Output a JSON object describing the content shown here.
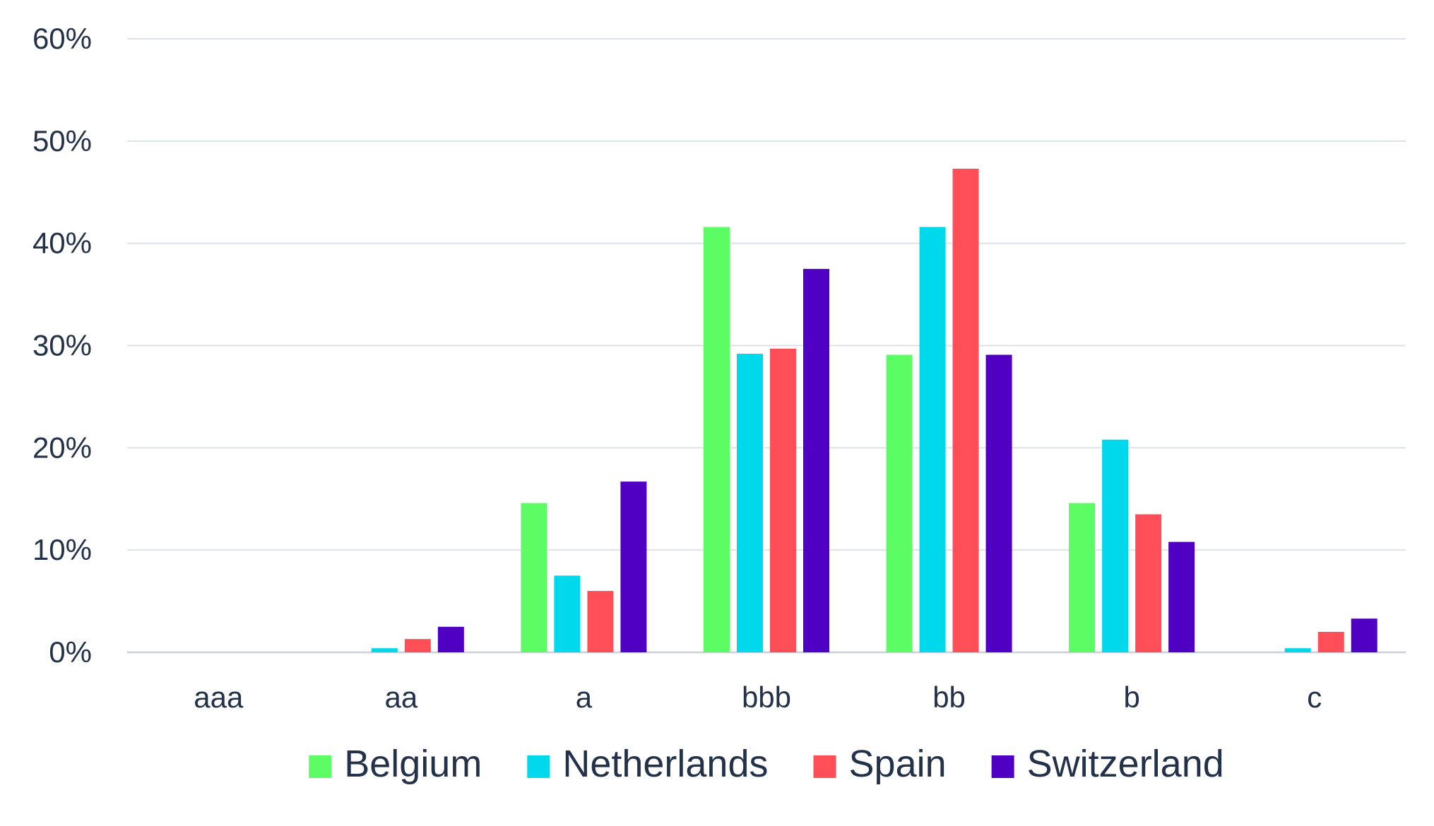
{
  "chart_data": {
    "type": "bar",
    "categories": [
      "aaa",
      "aa",
      "a",
      "bbb",
      "bb",
      "b",
      "c"
    ],
    "series": [
      {
        "name": "Belgium",
        "color": "#5cfc64",
        "values": [
          0,
          0,
          14.6,
          41.6,
          29.1,
          14.6,
          0
        ]
      },
      {
        "name": "Netherlands",
        "color": "#00d8ec",
        "values": [
          0,
          0.4,
          7.5,
          29.2,
          41.6,
          20.8,
          0.4
        ]
      },
      {
        "name": "Spain",
        "color": "#fe4f58",
        "values": [
          0,
          1.3,
          6.0,
          29.7,
          47.3,
          13.5,
          2.0
        ]
      },
      {
        "name": "Switzerland",
        "color": "#5000c2",
        "values": [
          0,
          2.5,
          16.7,
          37.5,
          29.1,
          10.8,
          3.3
        ]
      }
    ],
    "y_ticks": [
      "0%",
      "10%",
      "20%",
      "30%",
      "40%",
      "50%",
      "60%"
    ],
    "ylim": [
      0,
      60
    ],
    "grid": true,
    "legend": "bottom",
    "title": "",
    "xlabel": "",
    "ylabel": ""
  }
}
